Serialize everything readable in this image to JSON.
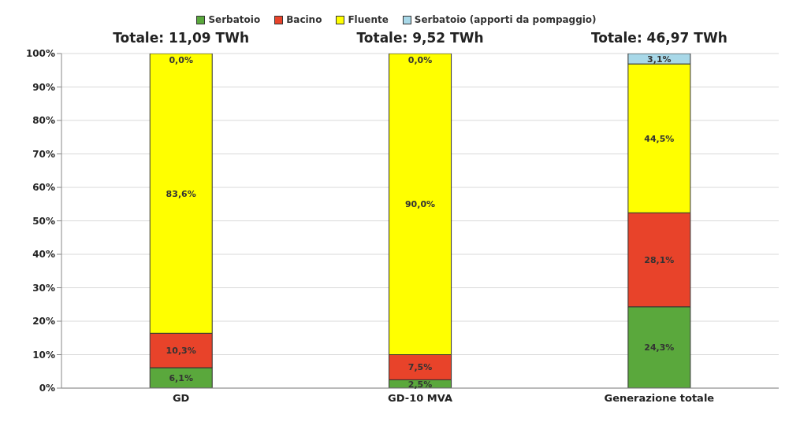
{
  "chart_data": {
    "type": "bar",
    "stacked": true,
    "categories": [
      "GD",
      "GD-10 MVA",
      "Generazione totale"
    ],
    "series": [
      {
        "name": "Serbatoio",
        "color": "#5aa83c",
        "values": [
          6.1,
          2.5,
          24.3
        ],
        "value_labels": [
          "6,1%",
          "2,5%",
          "24,3%"
        ]
      },
      {
        "name": "Bacino",
        "color": "#e8432a",
        "values": [
          10.3,
          7.5,
          28.1
        ],
        "value_labels": [
          "10,3%",
          "7,5%",
          "28,1%"
        ]
      },
      {
        "name": "Fluente",
        "color": "#ffff00",
        "values": [
          83.6,
          90.0,
          44.5
        ],
        "value_labels": [
          "83,6%",
          "90,0%",
          "44,5%"
        ]
      },
      {
        "name": "Serbatoio (apporti da pompaggio)",
        "color": "#a8d8e8",
        "values": [
          0.0,
          0.0,
          3.1
        ],
        "value_labels": [
          "0,0%",
          "0,0%",
          "3,1%"
        ]
      }
    ],
    "annotations": [
      {
        "text": "Totale: 11,09 TWh",
        "x": "GD",
        "y": 100
      },
      {
        "text": "Totale: 9,52 TWh",
        "x": "GD-10 MVA",
        "y": 100
      },
      {
        "text": "Totale: 46,97 TWh",
        "x": "Generazione totale",
        "y": 100
      }
    ],
    "ylim": [
      0,
      100
    ],
    "yticks": [
      {
        "value": 0,
        "label": "0%"
      },
      {
        "value": 10,
        "label": "10%"
      },
      {
        "value": 20,
        "label": "20%"
      },
      {
        "value": 30,
        "label": "30%"
      },
      {
        "value": 40,
        "label": "40%"
      },
      {
        "value": 50,
        "label": "50%"
      },
      {
        "value": 60,
        "label": "60%"
      },
      {
        "value": 70,
        "label": "70%"
      },
      {
        "value": 80,
        "label": "80%"
      },
      {
        "value": 90,
        "label": "90%"
      },
      {
        "value": 100,
        "label": "100%"
      }
    ],
    "grid": "y",
    "legend": "top"
  }
}
